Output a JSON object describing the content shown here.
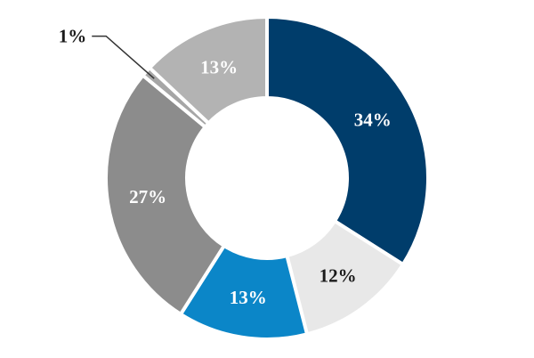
{
  "chart_data": {
    "type": "pie",
    "donut": true,
    "title": "",
    "slices": [
      {
        "value": 34,
        "label": "34%",
        "color": "#003d6b",
        "label_color": "#ffffff"
      },
      {
        "value": 12,
        "label": "12%",
        "color": "#e8e8e8",
        "label_color": "#1a1a1a"
      },
      {
        "value": 13,
        "label": "13%",
        "color": "#0b86c8",
        "label_color": "#ffffff"
      },
      {
        "value": 27,
        "label": "27%",
        "color": "#8c8c8c",
        "label_color": "#ffffff"
      },
      {
        "value": 1,
        "label": "1%",
        "color": "#a6a6a6",
        "label_color": "#1a1a1a"
      },
      {
        "value": 13,
        "label": "13%",
        "color": "#b3b3b3",
        "label_color": "#ffffff"
      }
    ]
  }
}
